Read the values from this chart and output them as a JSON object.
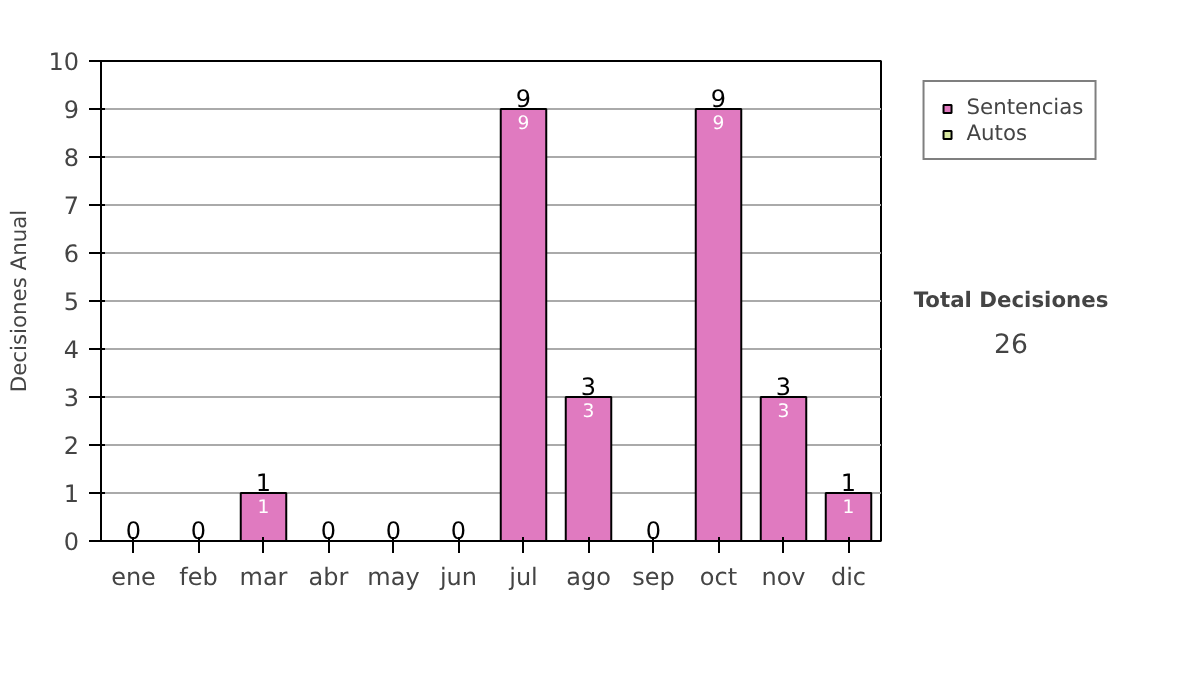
{
  "chart_data": {
    "type": "bar",
    "stacked": true,
    "ylabel": "Decisiones Anual",
    "categories": [
      "ene",
      "feb",
      "mar",
      "abr",
      "may",
      "jun",
      "jul",
      "ago",
      "sep",
      "oct",
      "nov",
      "dic"
    ],
    "series": [
      {
        "name": "Sentencias",
        "color": "#e07ac0",
        "values": [
          0,
          0,
          1,
          0,
          0,
          0,
          9,
          3,
          0,
          9,
          3,
          1
        ],
        "value_labels": [
          null,
          null,
          "1",
          null,
          null,
          null,
          "9",
          "3",
          null,
          "9",
          "3",
          "1"
        ]
      },
      {
        "name": "Autos",
        "color": "#d8e8a0",
        "values": [
          0,
          0,
          0,
          0,
          0,
          0,
          0,
          0,
          0,
          0,
          0,
          0
        ]
      }
    ],
    "totals": [
      "0",
      "0",
      "1",
      "0",
      "0",
      "0",
      "9",
      "3",
      "0",
      "9",
      "3",
      "1"
    ],
    "ylim": [
      0,
      10
    ],
    "yticks": [
      0,
      1,
      2,
      3,
      4,
      5,
      6,
      7,
      8,
      9,
      10
    ],
    "grid": "y",
    "legend": "right",
    "annotations": [
      "Total Decisiones",
      "26"
    ]
  }
}
